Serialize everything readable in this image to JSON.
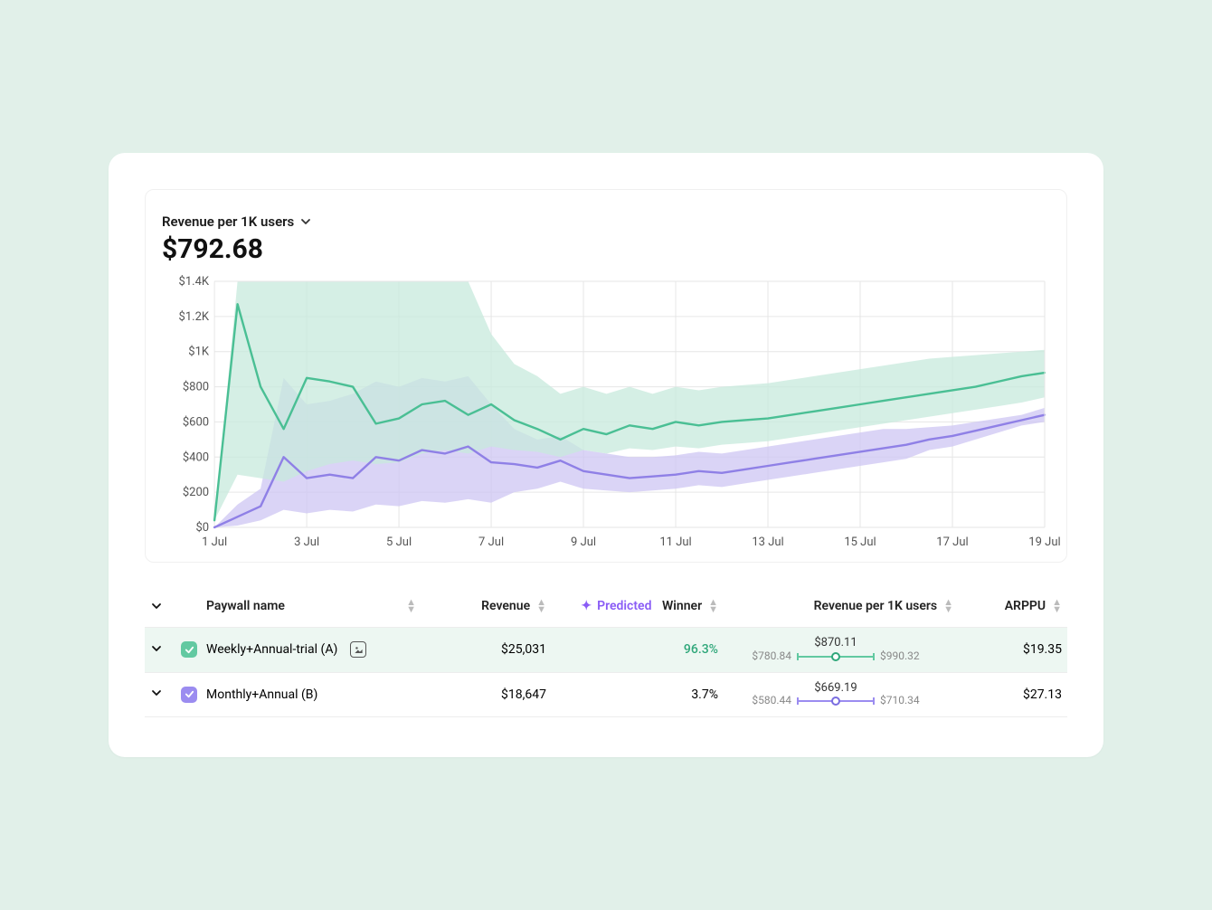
{
  "page_bg": "#e1f0e9",
  "card_bg": "#ffffff",
  "chart": {
    "metric_label": "Revenue per 1K users",
    "metric_value": "$792.68",
    "type": "line-with-confidence-band",
    "y_axis": {
      "min": 0,
      "max": 1400,
      "tick_step": 200,
      "ticks": [
        "$0",
        "$200",
        "$400",
        "$600",
        "$800",
        "$1K",
        "$1.2K",
        "$1.4K"
      ],
      "label_fontsize": 13
    },
    "x_axis": {
      "ticks": [
        "1 Jul",
        "3 Jul",
        "5 Jul",
        "7 Jul",
        "9 Jul",
        "11 Jul",
        "13 Jul",
        "15 Jul",
        "17 Jul",
        "19 Jul"
      ],
      "num_points": 19,
      "label_fontsize": 13
    },
    "grid_color": "#e6e6e6",
    "plot_bg": "#ffffff",
    "series": [
      {
        "name": "Weekly+Annual-trial (A)",
        "line_color": "#4abf94",
        "band_color": "#c7e9dc",
        "band_opacity": 0.75,
        "line_width": 2.4,
        "y": [
          40,
          1270,
          800,
          560,
          850,
          830,
          800,
          590,
          620,
          700,
          720,
          640,
          700,
          610,
          560,
          500,
          560,
          530,
          580,
          560,
          600,
          580,
          600,
          610,
          620,
          640,
          660,
          680,
          700,
          720,
          740,
          760,
          780,
          800,
          830,
          860,
          880
        ],
        "band_upper": [
          40,
          1400,
          1400,
          1400,
          1400,
          1400,
          1400,
          1400,
          1400,
          1400,
          1400,
          1400,
          1100,
          930,
          860,
          760,
          800,
          760,
          800,
          760,
          800,
          780,
          800,
          810,
          820,
          840,
          860,
          880,
          900,
          920,
          940,
          960,
          970,
          980,
          990,
          1000,
          1010
        ],
        "band_lower": [
          40,
          300,
          280,
          260,
          320,
          360,
          380,
          360,
          370,
          420,
          440,
          420,
          460,
          440,
          430,
          400,
          440,
          420,
          450,
          440,
          460,
          450,
          470,
          480,
          490,
          510,
          530,
          550,
          570,
          590,
          610,
          630,
          650,
          670,
          690,
          710,
          740
        ]
      },
      {
        "name": "Monthly+Annual (B)",
        "line_color": "#8f80e6",
        "band_color": "#cdc6f3",
        "band_opacity": 0.75,
        "line_width": 2.4,
        "y": [
          0,
          60,
          120,
          400,
          280,
          300,
          280,
          400,
          380,
          440,
          420,
          460,
          370,
          360,
          340,
          380,
          320,
          300,
          280,
          290,
          300,
          320,
          310,
          330,
          350,
          370,
          390,
          410,
          430,
          450,
          470,
          500,
          520,
          550,
          580,
          610,
          640
        ],
        "band_upper": [
          0,
          130,
          220,
          850,
          700,
          720,
          760,
          830,
          800,
          850,
          830,
          860,
          700,
          560,
          500,
          520,
          440,
          420,
          400,
          400,
          410,
          430,
          420,
          440,
          460,
          480,
          500,
          520,
          540,
          560,
          560,
          570,
          580,
          600,
          620,
          640,
          680
        ],
        "band_lower": [
          0,
          10,
          40,
          100,
          80,
          100,
          90,
          130,
          120,
          150,
          140,
          160,
          140,
          200,
          220,
          260,
          220,
          210,
          200,
          210,
          220,
          240,
          230,
          250,
          270,
          290,
          310,
          330,
          350,
          370,
          390,
          440,
          460,
          500,
          540,
          580,
          600
        ]
      }
    ]
  },
  "table": {
    "columns": {
      "paywall": "Paywall name",
      "revenue": "Revenue",
      "predicted_prefix": "Predicted",
      "winner": "Winner",
      "rp1k": "Revenue per 1K users",
      "arppu": "ARPPU"
    },
    "rows": [
      {
        "id": "A",
        "name": "Weekly+Annual-trial (A)",
        "checkbox_color": "#62c9a1",
        "revenue": "$25,031",
        "predicted_winner": "96.3%",
        "is_winner": true,
        "ci": {
          "low": "$780.84",
          "mid": "$870.11",
          "high": "$990.32",
          "color": "green"
        },
        "arppu": "$19.35"
      },
      {
        "id": "B",
        "name": "Monthly+Annual (B)",
        "checkbox_color": "#9b8cf0",
        "revenue": "$18,647",
        "predicted_winner": "3.7%",
        "is_winner": false,
        "ci": {
          "low": "$580.44",
          "mid": "$669.19",
          "high": "$710.34",
          "color": "purple"
        },
        "arppu": "$27.13"
      }
    ]
  }
}
